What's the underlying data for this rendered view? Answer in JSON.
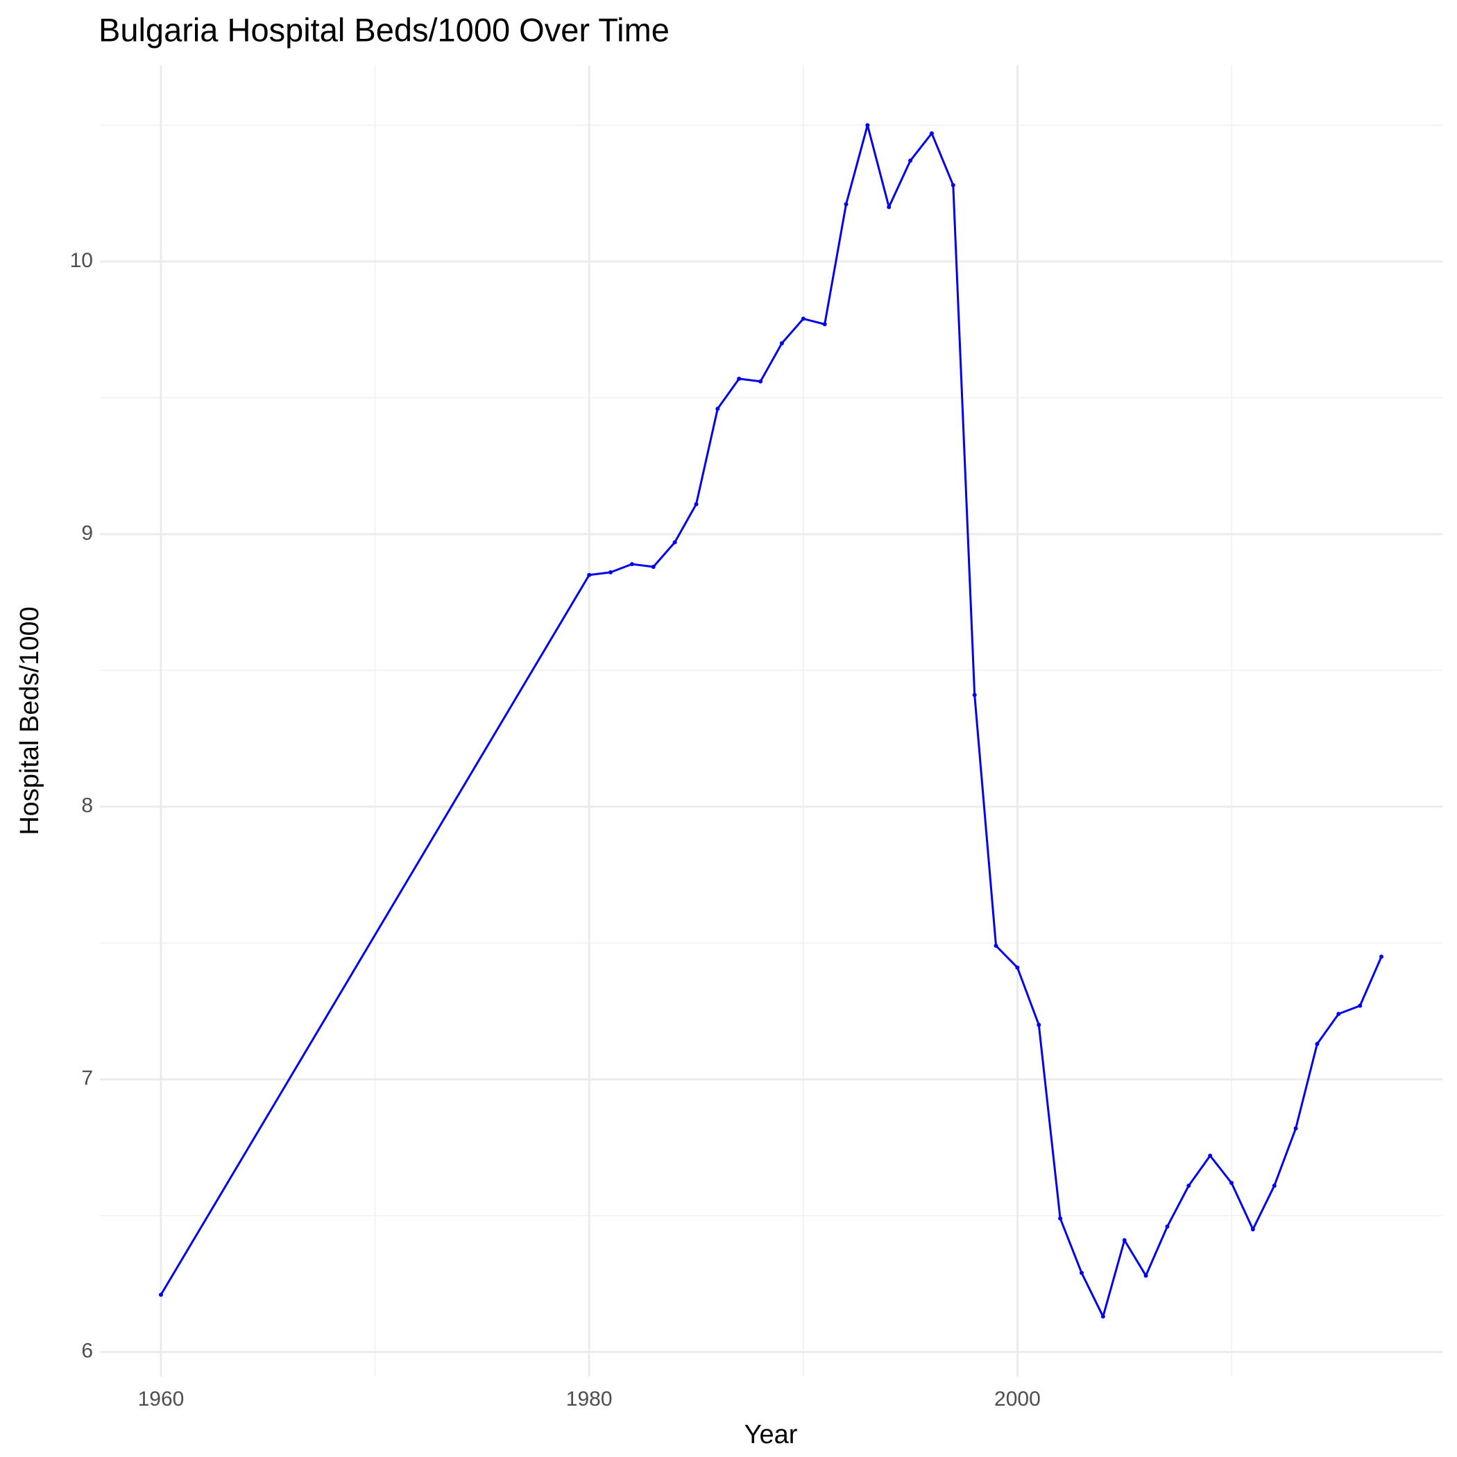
{
  "chart_data": {
    "type": "line",
    "title": "Bulgaria Hospital Beds/1000 Over Time",
    "x_label": "Year",
    "y_label": "Hospital Beds/1000",
    "x": [
      1960,
      1980,
      1981,
      1982,
      1983,
      1984,
      1985,
      1986,
      1987,
      1988,
      1989,
      1990,
      1991,
      1992,
      1993,
      1994,
      1995,
      1996,
      1997,
      1998,
      1999,
      2000,
      2001,
      2002,
      2003,
      2004,
      2005,
      2006,
      2007,
      2008,
      2009,
      2010,
      2011,
      2012,
      2013,
      2014,
      2015,
      2016,
      2017
    ],
    "series": [
      {
        "color": "#0000ee",
        "values": [
          6.21,
          8.85,
          8.86,
          8.89,
          8.88,
          8.97,
          9.11,
          9.46,
          9.57,
          9.56,
          9.7,
          9.79,
          9.77,
          10.21,
          10.5,
          10.2,
          10.37,
          10.47,
          10.28,
          8.41,
          7.49,
          7.41,
          7.2,
          6.49,
          6.29,
          6.13,
          6.41,
          6.28,
          6.46,
          6.61,
          6.72,
          6.62,
          6.45,
          6.61,
          6.82,
          7.13,
          7.24,
          7.27,
          7.45
        ]
      }
    ],
    "xlim": [
      1957.15,
      2019.85
    ],
    "ylim": [
      5.91,
      10.72
    ],
    "xticks": [
      1960,
      1980,
      2000
    ],
    "yticks": [
      6,
      7,
      8,
      9,
      10
    ],
    "x_minor_grid": [
      1970,
      1990,
      2010
    ],
    "y_minor_grid": [
      6.5,
      7.5,
      8.5,
      9.5,
      10.5
    ],
    "grid": true
  }
}
